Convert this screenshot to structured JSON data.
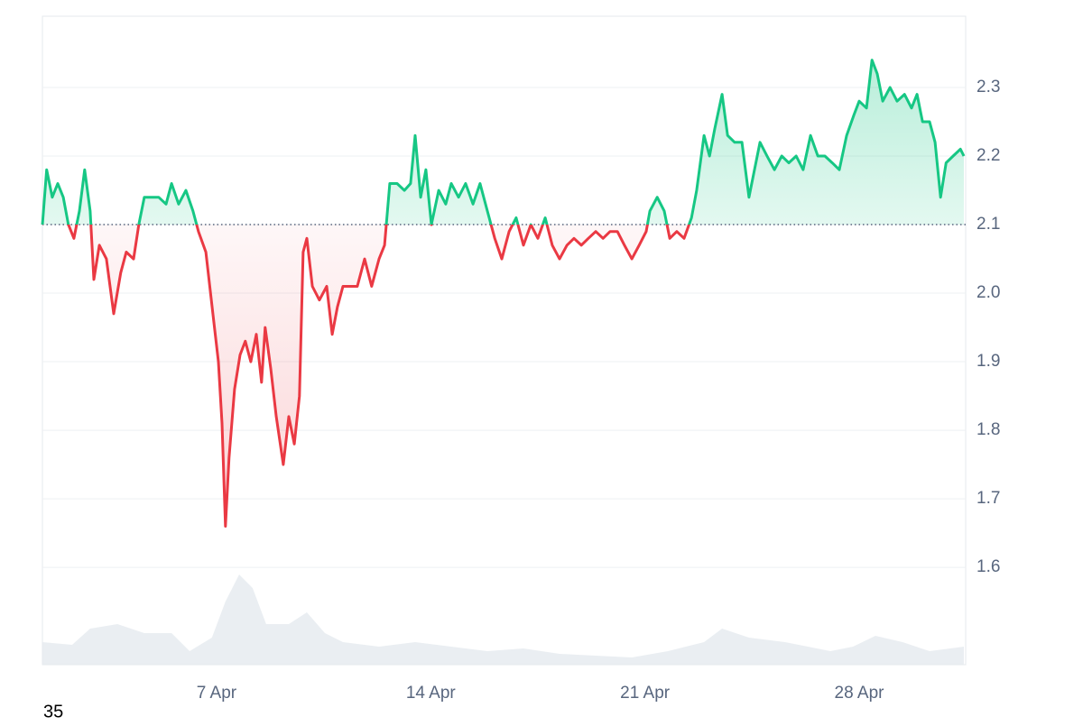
{
  "chart_data": {
    "type": "baseline-line",
    "x": [
      1.31,
      1.45,
      1.63,
      1.81,
      1.99,
      2.16,
      2.34,
      2.52,
      2.69,
      2.87,
      2.99,
      3.17,
      3.4,
      3.64,
      3.87,
      4.05,
      4.29,
      4.46,
      4.64,
      4.88,
      5.11,
      5.35,
      5.53,
      5.76,
      6.0,
      6.23,
      6.41,
      6.65,
      6.88,
      7.06,
      7.18,
      7.29,
      7.41,
      7.59,
      7.77,
      7.94,
      8.12,
      8.3,
      8.47,
      8.59,
      8.77,
      8.95,
      9.18,
      9.36,
      9.54,
      9.71,
      9.83,
      9.95,
      10.13,
      10.36,
      10.6,
      10.78,
      10.95,
      11.13,
      11.37,
      11.6,
      11.84,
      12.07,
      12.31,
      12.49,
      12.66,
      12.9,
      13.14,
      13.34,
      13.49,
      13.67,
      13.84,
      14.02,
      14.26,
      14.49,
      14.67,
      14.91,
      15.14,
      15.38,
      15.61,
      15.85,
      16.09,
      16.32,
      16.56,
      16.79,
      17.03,
      17.27,
      17.5,
      17.74,
      17.97,
      18.21,
      18.45,
      18.68,
      18.92,
      19.15,
      19.39,
      19.63,
      19.86,
      20.1,
      20.33,
      20.57,
      20.81,
      21.04,
      21.16,
      21.4,
      21.63,
      21.81,
      22.04,
      22.28,
      22.52,
      22.69,
      22.93,
      23.11,
      23.28,
      23.52,
      23.7,
      23.93,
      24.17,
      24.4,
      24.58,
      24.76,
      24.99,
      25.23,
      25.47,
      25.7,
      25.94,
      26.17,
      26.41,
      26.65,
      26.88,
      27.12,
      27.35,
      27.59,
      27.83,
      28.0,
      28.24,
      28.42,
      28.59,
      28.77,
      29.01,
      29.24,
      29.48,
      29.71,
      29.89,
      30.07,
      30.3,
      30.48,
      30.66,
      30.84,
      31.07,
      31.31,
      31.42
    ],
    "series": [
      {
        "color": "#16c784",
        "down_color": "#ea3943",
        "values": [
          2.1,
          2.18,
          2.14,
          2.16,
          2.14,
          2.1,
          2.08,
          2.12,
          2.18,
          2.12,
          2.02,
          2.07,
          2.05,
          1.97,
          2.03,
          2.06,
          2.05,
          2.1,
          2.14,
          2.14,
          2.14,
          2.13,
          2.16,
          2.13,
          2.15,
          2.12,
          2.09,
          2.06,
          1.97,
          1.9,
          1.81,
          1.66,
          1.76,
          1.86,
          1.91,
          1.93,
          1.9,
          1.94,
          1.87,
          1.95,
          1.89,
          1.82,
          1.75,
          1.82,
          1.78,
          1.85,
          2.06,
          2.08,
          2.01,
          1.99,
          2.01,
          1.94,
          1.98,
          2.01,
          2.01,
          2.01,
          2.05,
          2.01,
          2.05,
          2.07,
          2.16,
          2.16,
          2.15,
          2.16,
          2.23,
          2.14,
          2.18,
          2.1,
          2.15,
          2.13,
          2.16,
          2.14,
          2.16,
          2.13,
          2.16,
          2.12,
          2.08,
          2.05,
          2.09,
          2.11,
          2.07,
          2.1,
          2.08,
          2.11,
          2.07,
          2.05,
          2.07,
          2.08,
          2.07,
          2.08,
          2.09,
          2.08,
          2.09,
          2.09,
          2.07,
          2.05,
          2.07,
          2.09,
          2.12,
          2.14,
          2.12,
          2.08,
          2.09,
          2.08,
          2.11,
          2.15,
          2.23,
          2.2,
          2.24,
          2.29,
          2.23,
          2.22,
          2.22,
          2.14,
          2.18,
          2.22,
          2.2,
          2.18,
          2.2,
          2.19,
          2.2,
          2.18,
          2.23,
          2.2,
          2.2,
          2.19,
          2.18,
          2.23,
          2.26,
          2.28,
          2.27,
          2.34,
          2.32,
          2.28,
          2.3,
          2.28,
          2.29,
          2.27,
          2.29,
          2.25,
          2.25,
          2.22,
          2.14,
          2.19,
          2.2,
          2.21,
          2.2
        ]
      },
      {
        "axis": "y2",
        "color": "#e6ebf0",
        "x": [
          1.31,
          2.28,
          2.87,
          3.76,
          4.64,
          5.53,
          6.12,
          6.85,
          7.29,
          7.74,
          8.18,
          8.62,
          9.36,
          9.95,
          10.54,
          11.13,
          12.31,
          13.49,
          14.67,
          15.85,
          17.03,
          18.21,
          19.39,
          20.57,
          21.75,
          22.93,
          23.52,
          24.4,
          25.58,
          27.06,
          27.8,
          28.53,
          29.42,
          30.3,
          31.42
        ],
        "values": [
          25,
          22,
          40,
          45,
          35,
          35,
          15,
          30,
          70,
          100,
          85,
          45,
          45,
          58,
          35,
          25,
          20,
          25,
          20,
          15,
          18,
          12,
          10,
          8,
          15,
          25,
          40,
          30,
          25,
          15,
          20,
          32,
          25,
          15,
          20
        ]
      }
    ],
    "baseline": 2.1,
    "xlim": [
      1.31,
      31.48
    ],
    "xticks": [
      {
        "value": 7,
        "label": "7 Apr"
      },
      {
        "value": 14,
        "label": "14 Apr"
      },
      {
        "value": 21,
        "label": "21 Apr"
      },
      {
        "value": 28,
        "label": "28 Apr"
      }
    ],
    "ylim": [
      1.458,
      2.404
    ],
    "yticks": [
      1.6,
      1.7,
      1.8,
      1.9,
      {
        "value": 2.0,
        "label": "2.0"
      },
      2.1,
      2.2,
      2.3
    ],
    "y2lim": [
      0,
      719
    ],
    "grid": true,
    "footnote": "35"
  }
}
